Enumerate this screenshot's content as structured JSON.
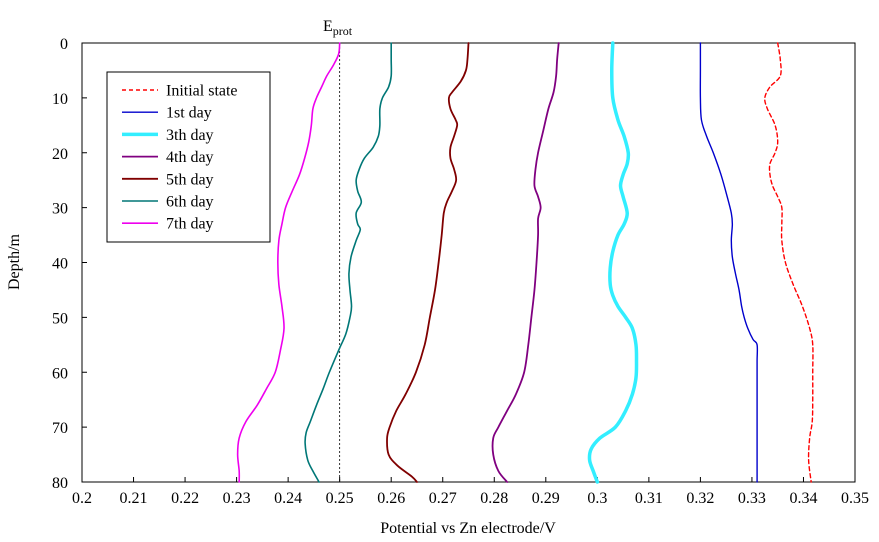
{
  "chart_data": {
    "type": "line",
    "title": "",
    "xlabel": "Potential vs Zn electrode/V",
    "ylabel": "Depth/m",
    "xlim": [
      0.2,
      0.35
    ],
    "ylim": [
      0,
      80
    ],
    "y_inverted": true,
    "x_axis_position": "top",
    "xticks": [
      "0.2",
      "0.21",
      "0.22",
      "0.23",
      "0.24",
      "0.25",
      "0.26",
      "0.27",
      "0.28",
      "0.29",
      "0.3",
      "0.31",
      "0.32",
      "0.33",
      "0.34",
      "0.35"
    ],
    "yticks": [
      "0",
      "10",
      "20",
      "30",
      "40",
      "50",
      "60",
      "70",
      "80"
    ],
    "grid": false,
    "legend_position": "top-left",
    "reference_line": {
      "x": 0.25,
      "label_main": "E",
      "label_sub": "prot",
      "style": "dashed"
    },
    "series": [
      {
        "name": "Initial state",
        "color": "#ff0000",
        "style": "dashed",
        "width": 1.4,
        "points": [
          [
            0.335,
            0
          ],
          [
            0.3355,
            3
          ],
          [
            0.3355,
            6
          ],
          [
            0.3335,
            8
          ],
          [
            0.3325,
            10
          ],
          [
            0.333,
            12
          ],
          [
            0.3345,
            15
          ],
          [
            0.335,
            18
          ],
          [
            0.3345,
            20
          ],
          [
            0.3335,
            22
          ],
          [
            0.3335,
            24
          ],
          [
            0.334,
            26
          ],
          [
            0.335,
            28
          ],
          [
            0.3358,
            30
          ],
          [
            0.3358,
            33
          ],
          [
            0.3358,
            36
          ],
          [
            0.3365,
            40
          ],
          [
            0.338,
            44
          ],
          [
            0.3398,
            48
          ],
          [
            0.3412,
            52
          ],
          [
            0.3418,
            55
          ],
          [
            0.3418,
            60
          ],
          [
            0.3418,
            65
          ],
          [
            0.3417,
            69
          ],
          [
            0.3412,
            72
          ],
          [
            0.341,
            76
          ],
          [
            0.3415,
            80
          ]
        ]
      },
      {
        "name": "1st day",
        "color": "#0000cc",
        "style": "solid",
        "width": 1.4,
        "points": [
          [
            0.32,
            0
          ],
          [
            0.32,
            5
          ],
          [
            0.32,
            10
          ],
          [
            0.3202,
            14
          ],
          [
            0.3212,
            17
          ],
          [
            0.3225,
            20
          ],
          [
            0.324,
            24
          ],
          [
            0.3252,
            28
          ],
          [
            0.326,
            31
          ],
          [
            0.3262,
            33
          ],
          [
            0.326,
            36
          ],
          [
            0.3262,
            39
          ],
          [
            0.3268,
            42
          ],
          [
            0.3275,
            45
          ],
          [
            0.328,
            48
          ],
          [
            0.3285,
            50
          ],
          [
            0.3292,
            52
          ],
          [
            0.3302,
            54
          ],
          [
            0.331,
            55
          ],
          [
            0.331,
            58
          ],
          [
            0.331,
            62
          ],
          [
            0.331,
            66
          ],
          [
            0.331,
            70
          ],
          [
            0.331,
            75
          ],
          [
            0.331,
            80
          ]
        ]
      },
      {
        "name": "3th day",
        "color": "#33eeff",
        "style": "solid",
        "width": 3.5,
        "points": [
          [
            0.303,
            0
          ],
          [
            0.3028,
            5
          ],
          [
            0.303,
            10
          ],
          [
            0.304,
            14
          ],
          [
            0.3052,
            17
          ],
          [
            0.306,
            20
          ],
          [
            0.3058,
            22
          ],
          [
            0.305,
            24
          ],
          [
            0.3045,
            26
          ],
          [
            0.305,
            28
          ],
          [
            0.3058,
            31
          ],
          [
            0.3052,
            33
          ],
          [
            0.304,
            35
          ],
          [
            0.303,
            38
          ],
          [
            0.3025,
            41
          ],
          [
            0.3025,
            44
          ],
          [
            0.303,
            46
          ],
          [
            0.304,
            48
          ],
          [
            0.3055,
            50
          ],
          [
            0.3068,
            52
          ],
          [
            0.3075,
            55
          ],
          [
            0.3076,
            58
          ],
          [
            0.3075,
            61
          ],
          [
            0.3068,
            64
          ],
          [
            0.3055,
            67
          ],
          [
            0.3035,
            70
          ],
          [
            0.3005,
            72
          ],
          [
            0.2988,
            74
          ],
          [
            0.2985,
            76
          ],
          [
            0.2992,
            78
          ],
          [
            0.3,
            80
          ]
        ]
      },
      {
        "name": "4th day",
        "color": "#800080",
        "style": "solid",
        "width": 1.8,
        "points": [
          [
            0.2925,
            0
          ],
          [
            0.2922,
            3
          ],
          [
            0.292,
            6
          ],
          [
            0.2915,
            9
          ],
          [
            0.2905,
            12
          ],
          [
            0.2895,
            16
          ],
          [
            0.2885,
            20
          ],
          [
            0.288,
            23
          ],
          [
            0.2878,
            26
          ],
          [
            0.2885,
            28
          ],
          [
            0.289,
            30
          ],
          [
            0.2885,
            32
          ],
          [
            0.2885,
            35
          ],
          [
            0.2882,
            40
          ],
          [
            0.2878,
            45
          ],
          [
            0.2872,
            50
          ],
          [
            0.2866,
            55
          ],
          [
            0.2858,
            60
          ],
          [
            0.2842,
            64
          ],
          [
            0.2825,
            67
          ],
          [
            0.2808,
            70
          ],
          [
            0.2798,
            72
          ],
          [
            0.2798,
            75
          ],
          [
            0.2808,
            78
          ],
          [
            0.2825,
            80
          ]
        ]
      },
      {
        "name": "5th day",
        "color": "#800000",
        "style": "solid",
        "width": 1.8,
        "points": [
          [
            0.275,
            0
          ],
          [
            0.2748,
            3
          ],
          [
            0.2745,
            5
          ],
          [
            0.2735,
            7
          ],
          [
            0.2718,
            9
          ],
          [
            0.2712,
            10
          ],
          [
            0.2715,
            12
          ],
          [
            0.2725,
            14
          ],
          [
            0.2728,
            15
          ],
          [
            0.2722,
            17
          ],
          [
            0.2715,
            19
          ],
          [
            0.2715,
            21
          ],
          [
            0.2722,
            23
          ],
          [
            0.2726,
            25
          ],
          [
            0.2718,
            27
          ],
          [
            0.2708,
            29
          ],
          [
            0.2702,
            31
          ],
          [
            0.2698,
            35
          ],
          [
            0.2692,
            40
          ],
          [
            0.2685,
            45
          ],
          [
            0.2675,
            50
          ],
          [
            0.2665,
            55
          ],
          [
            0.2648,
            60
          ],
          [
            0.2628,
            64
          ],
          [
            0.261,
            67
          ],
          [
            0.2597,
            70
          ],
          [
            0.2592,
            72
          ],
          [
            0.2595,
            75
          ],
          [
            0.2612,
            77
          ],
          [
            0.264,
            79
          ],
          [
            0.265,
            80
          ]
        ]
      },
      {
        "name": "6th day",
        "color": "#007777",
        "style": "solid",
        "width": 1.6,
        "points": [
          [
            0.26,
            0
          ],
          [
            0.26,
            3
          ],
          [
            0.26,
            6
          ],
          [
            0.2595,
            8
          ],
          [
            0.2583,
            10
          ],
          [
            0.2578,
            12
          ],
          [
            0.2578,
            15
          ],
          [
            0.2575,
            17
          ],
          [
            0.2565,
            19
          ],
          [
            0.2548,
            21
          ],
          [
            0.2538,
            23
          ],
          [
            0.2532,
            25
          ],
          [
            0.2535,
            27
          ],
          [
            0.2542,
            29
          ],
          [
            0.2532,
            31
          ],
          [
            0.2535,
            33
          ],
          [
            0.254,
            34
          ],
          [
            0.2532,
            36
          ],
          [
            0.2522,
            39
          ],
          [
            0.2518,
            42
          ],
          [
            0.252,
            45
          ],
          [
            0.2523,
            48
          ],
          [
            0.252,
            50
          ],
          [
            0.2512,
            53
          ],
          [
            0.2498,
            56
          ],
          [
            0.248,
            60
          ],
          [
            0.2468,
            63
          ],
          [
            0.2455,
            66
          ],
          [
            0.2443,
            69
          ],
          [
            0.2435,
            71
          ],
          [
            0.2433,
            73
          ],
          [
            0.2438,
            76
          ],
          [
            0.2448,
            78
          ],
          [
            0.246,
            80
          ]
        ]
      },
      {
        "name": "7th day",
        "color": "#ee00ee",
        "style": "solid",
        "width": 1.6,
        "points": [
          [
            0.25,
            0
          ],
          [
            0.2498,
            2
          ],
          [
            0.2488,
            4
          ],
          [
            0.2475,
            6
          ],
          [
            0.2465,
            8
          ],
          [
            0.2455,
            10
          ],
          [
            0.2448,
            12
          ],
          [
            0.2445,
            15
          ],
          [
            0.244,
            18
          ],
          [
            0.2432,
            21
          ],
          [
            0.2422,
            24
          ],
          [
            0.2408,
            27
          ],
          [
            0.2395,
            30
          ],
          [
            0.2388,
            33
          ],
          [
            0.2382,
            36
          ],
          [
            0.238,
            40
          ],
          [
            0.2382,
            44
          ],
          [
            0.2388,
            48
          ],
          [
            0.2392,
            52
          ],
          [
            0.2385,
            56
          ],
          [
            0.2375,
            60
          ],
          [
            0.2358,
            63
          ],
          [
            0.234,
            66
          ],
          [
            0.2318,
            69
          ],
          [
            0.2305,
            72
          ],
          [
            0.2302,
            75
          ],
          [
            0.2305,
            78
          ],
          [
            0.2305,
            80
          ]
        ]
      }
    ]
  }
}
